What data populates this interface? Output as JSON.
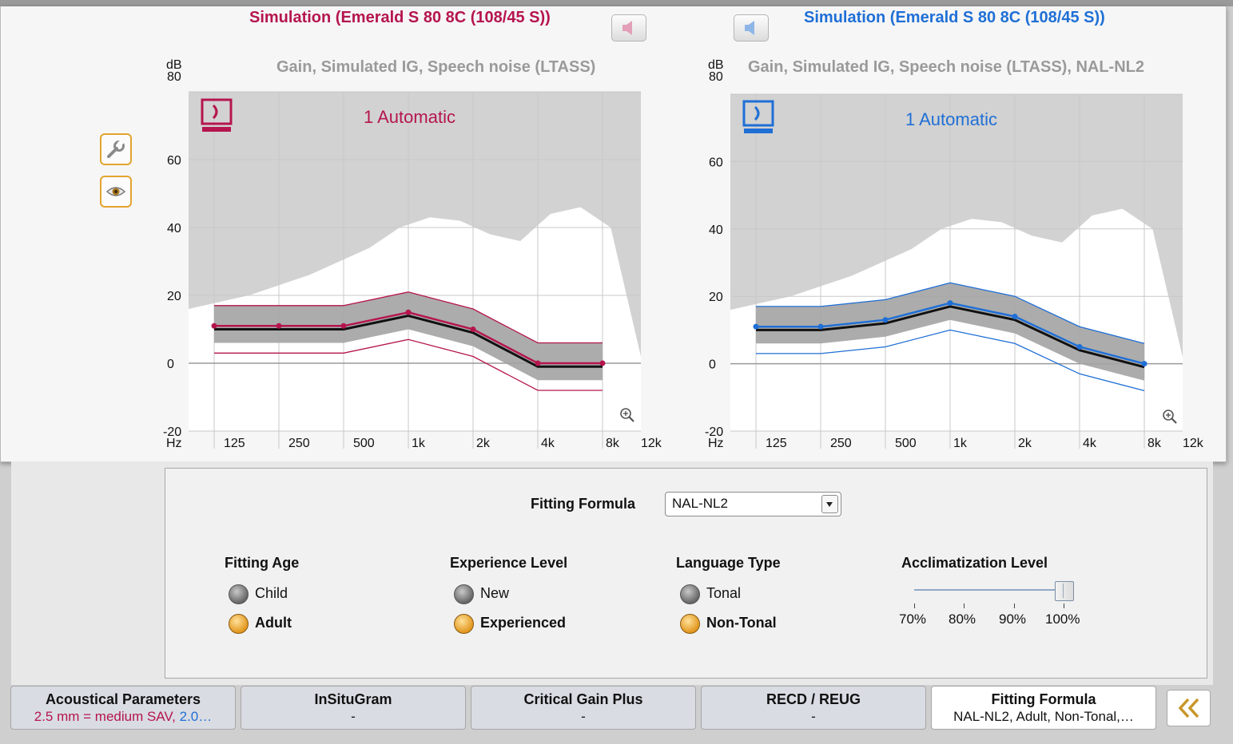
{
  "left_panel": {
    "title": "Simulation (Emerald S 80 8C (108/45 S))",
    "chart_title": "Gain, Simulated IG, Speech noise (LTASS)",
    "program": "1 Automatic",
    "color": "#b5154e",
    "speaker_icon": "speaker-icon"
  },
  "right_panel": {
    "title": "Simulation (Emerald S 80 8C (108/45 S))",
    "chart_title": "Gain, Simulated IG, Speech noise (LTASS), NAL-NL2",
    "program": "1 Automatic",
    "color": "#1f6fd6",
    "speaker_icon": "speaker-icon"
  },
  "axis": {
    "y_unit_top": "dB",
    "y_ticks": [
      "80",
      "60",
      "40",
      "20",
      "0",
      "-20"
    ],
    "x_unit": "Hz",
    "x_ticks": [
      "125",
      "250",
      "500",
      "1k",
      "2k",
      "4k",
      "8k",
      "12k"
    ]
  },
  "tools": {
    "settings_icon": "wrench-icon",
    "view_icon": "eye-icon"
  },
  "fitting": {
    "formula_label": "Fitting Formula",
    "formula_value": "NAL-NL2",
    "age": {
      "title": "Fitting Age",
      "options": [
        "Child",
        "Adult"
      ],
      "selected": "Adult"
    },
    "experience": {
      "title": "Experience Level",
      "options": [
        "New",
        "Experienced"
      ],
      "selected": "Experienced"
    },
    "language": {
      "title": "Language Type",
      "options": [
        "Tonal",
        "Non-Tonal"
      ],
      "selected": "Non-Tonal"
    },
    "acclimatization": {
      "title": "Acclimatization Level",
      "ticks": [
        "70%",
        "80%",
        "90%",
        "100%"
      ],
      "value": "100%"
    }
  },
  "tabs": [
    {
      "title": "Acoustical Parameters",
      "sub_left": "2.5 mm = medium SAV,",
      "sub_right": " 2.0…"
    },
    {
      "title": "InSituGram",
      "sub": "-"
    },
    {
      "title": "Critical Gain Plus",
      "sub": "-"
    },
    {
      "title": "RECD / REUG",
      "sub": "-"
    },
    {
      "title": "Fitting Formula",
      "sub": "NAL-NL2, Adult, Non-Tonal,…"
    }
  ],
  "chart_data": [
    {
      "type": "line",
      "title": "Gain, Simulated IG, Speech noise (LTASS)",
      "xlabel": "Hz",
      "ylabel": "dB",
      "x": [
        "125",
        "250",
        "500",
        "1k",
        "2k",
        "4k",
        "8k"
      ],
      "ylim": [
        -20,
        80
      ],
      "series": [
        {
          "name": "Gain",
          "values": [
            11,
            11,
            11,
            15,
            10,
            0,
            0
          ]
        }
      ]
    },
    {
      "type": "line",
      "title": "Gain, Simulated IG, Speech noise (LTASS), NAL-NL2",
      "xlabel": "Hz",
      "ylabel": "dB",
      "x": [
        "125",
        "250",
        "500",
        "1k",
        "2k",
        "4k",
        "8k"
      ],
      "ylim": [
        -20,
        80
      ],
      "series": [
        {
          "name": "Gain",
          "values": [
            11,
            11,
            13,
            18,
            14,
            5,
            0
          ]
        }
      ]
    }
  ]
}
